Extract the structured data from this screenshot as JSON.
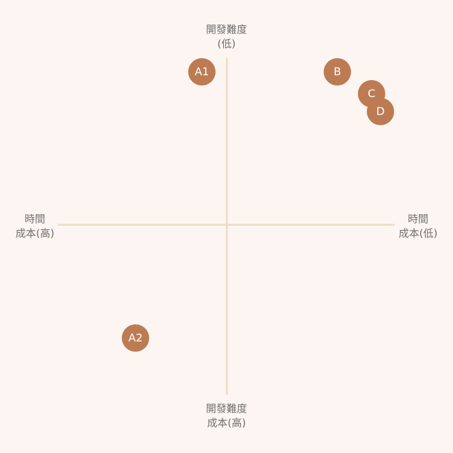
{
  "axes": {
    "top": {
      "line1": "開發難度",
      "line2": "(低)"
    },
    "bottom": {
      "line1": "開發難度",
      "line2": "成本(高)"
    },
    "left": {
      "line1": "時間",
      "line2": "成本(高)"
    },
    "right": {
      "line1": "時間",
      "line2": "成本(低)"
    }
  },
  "points": [
    {
      "label": "A1"
    },
    {
      "label": "B"
    },
    {
      "label": "C"
    },
    {
      "label": "D"
    },
    {
      "label": "A2"
    }
  ],
  "colors": {
    "background": "#fdf5f1",
    "axis": "#efdfca",
    "point": "#bc7b52",
    "text": "#6f6f6f"
  }
}
